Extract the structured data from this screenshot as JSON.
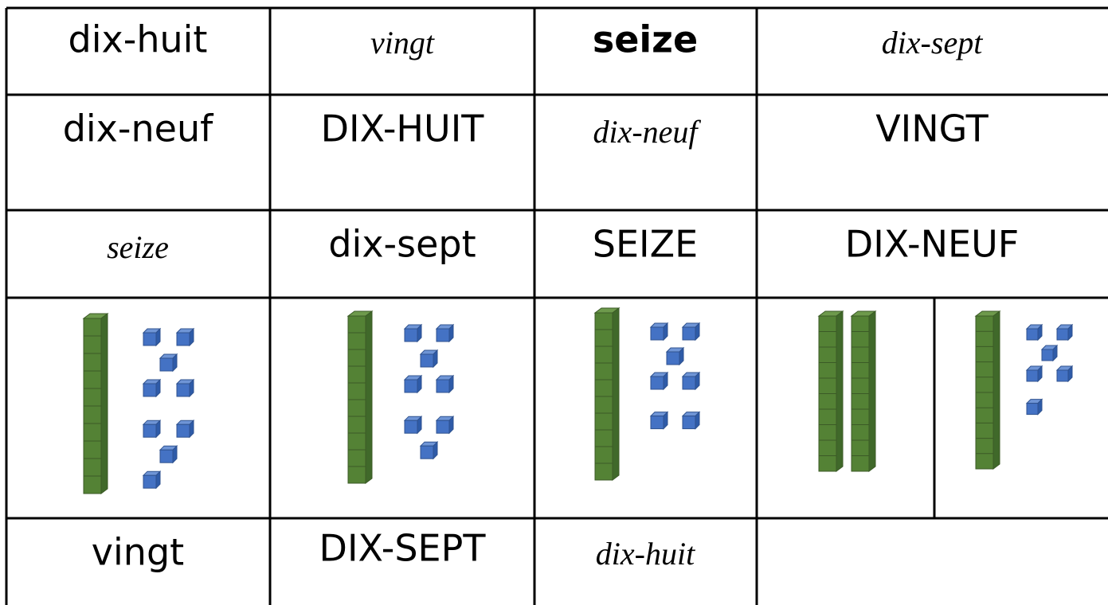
{
  "rows": [
    [
      "dix-huit",
      "vingt",
      "seize",
      "dix-sept"
    ],
    [
      "dix-neuf",
      "DIX-HUIT",
      "dix-neuf",
      "VINGT"
    ],
    [
      "seize",
      "dix-sept",
      "SEIZE",
      "DIX-NEUF"
    ],
    [
      "vingt",
      "DIX-SEPT",
      "dix-huit"
    ]
  ],
  "blocks": [
    {
      "tens": 1,
      "ones": 9
    },
    {
      "tens": 1,
      "ones": 8
    },
    {
      "tens": 1,
      "ones": 7
    },
    {
      "tens": 2,
      "ones": 0
    },
    {
      "tens": 1,
      "ones": 6
    }
  ]
}
